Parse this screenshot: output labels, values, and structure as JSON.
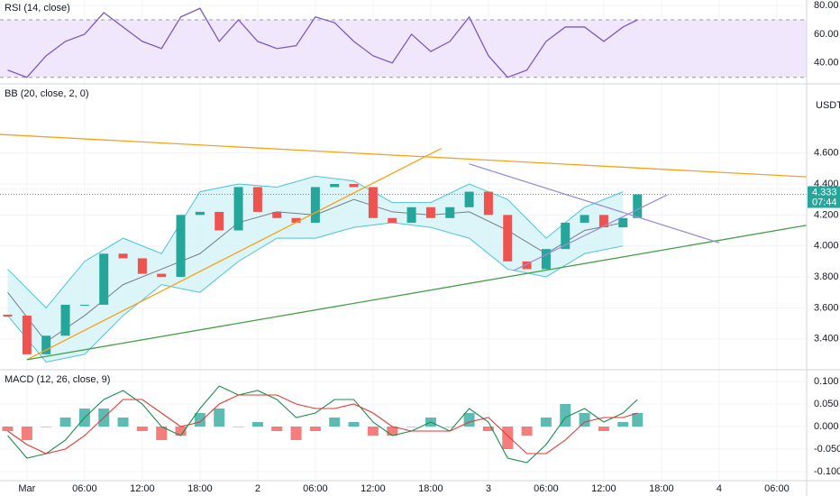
{
  "chart_data": [
    {
      "type": "line",
      "title": "RSI (14, close)",
      "x": [
        -2,
        0,
        2,
        4,
        6,
        8,
        10,
        12,
        14,
        16,
        18,
        20,
        22,
        24,
        26,
        28,
        30,
        32,
        34,
        36,
        38,
        40,
        42,
        44,
        46,
        48,
        50,
        52,
        54,
        56,
        58,
        60,
        62,
        63.5
      ],
      "values": [
        35,
        30,
        45,
        55,
        60,
        75,
        65,
        55,
        50,
        72,
        78,
        55,
        70,
        55,
        50,
        52,
        72,
        68,
        55,
        45,
        40,
        60,
        48,
        55,
        72,
        45,
        30,
        35,
        55,
        65,
        65,
        55,
        65,
        70
      ],
      "color": "#7e57c2",
      "band": [
        30,
        70
      ],
      "band_color": "#f1e7fd",
      "xlim": [
        -2.8,
        81.1
      ],
      "ylim": [
        26.7,
        83.8
      ],
      "yticks": [
        {
          "value": 40,
          "label": "40.00"
        },
        {
          "value": 60,
          "label": "60.00"
        },
        {
          "value": 80,
          "label": "80.00"
        }
      ]
    },
    {
      "type": "candlestick",
      "title": "BB (20, close, 2, 0)",
      "unit": "USDT",
      "x": [
        -2,
        0,
        2,
        4,
        6,
        8,
        10,
        12,
        14,
        16,
        18,
        20,
        22,
        24,
        26,
        28,
        30,
        32,
        34,
        36,
        38,
        40,
        42,
        44,
        46,
        48,
        50,
        52,
        54,
        56,
        58,
        60,
        62,
        63.5
      ],
      "close": [
        3.55,
        3.3,
        3.42,
        3.62,
        3.62,
        3.95,
        3.92,
        3.82,
        3.8,
        4.2,
        4.22,
        4.1,
        4.38,
        4.22,
        4.18,
        4.15,
        4.38,
        4.4,
        4.38,
        4.18,
        4.15,
        4.25,
        4.18,
        4.25,
        4.35,
        4.2,
        3.9,
        3.85,
        3.98,
        4.15,
        4.2,
        4.12,
        4.18,
        4.333
      ],
      "up_color": "#26a69a",
      "down_color": "#ef5350",
      "bands": {
        "x": [
          -2,
          2,
          6,
          10,
          14,
          18,
          22,
          26,
          30,
          34,
          38,
          42,
          46,
          50,
          54,
          58,
          62
        ],
        "upper": [
          3.85,
          3.6,
          3.9,
          4.05,
          3.95,
          4.35,
          4.4,
          4.38,
          4.45,
          4.42,
          4.28,
          4.28,
          4.4,
          4.3,
          4.05,
          4.25,
          4.35
        ],
        "middle": [
          3.7,
          3.38,
          3.55,
          3.75,
          3.85,
          3.95,
          4.15,
          4.22,
          4.2,
          4.3,
          4.22,
          4.2,
          4.22,
          4.1,
          3.95,
          4.1,
          4.15
        ],
        "lower": [
          3.55,
          3.25,
          3.3,
          3.55,
          3.75,
          3.7,
          3.9,
          4.05,
          4.05,
          4.12,
          4.15,
          4.12,
          4.05,
          3.85,
          3.8,
          3.95,
          4.0
        ],
        "color": "#4dc4d6",
        "middle_color": "#787b86",
        "fill": "#d3f3f8"
      },
      "trendlines": [
        {
          "color": "#f7a21b",
          "x": [
            -2.8,
            84.5
          ],
          "y": [
            4.72,
            4.435
          ]
        },
        {
          "color": "#f7a21b",
          "x": [
            0,
            43.1
          ],
          "y": [
            3.265,
            4.63
          ]
        },
        {
          "color": "#43a047",
          "x": [
            0,
            84.5
          ],
          "y": [
            3.265,
            4.17
          ]
        },
        {
          "color": "#9c8fd4",
          "x": [
            46,
            72
          ],
          "y": [
            4.53,
            4.02
          ]
        },
        {
          "color": "#9c8fd4",
          "x": [
            50.6,
            66.6
          ],
          "y": [
            3.84,
            4.33
          ]
        }
      ],
      "last": {
        "value": 4.333,
        "countdown": "07:44",
        "color": "#26a69a"
      },
      "xlim": [
        -2.8,
        81.1
      ],
      "ylim": [
        3.206,
        5.035
      ],
      "yticks": [
        {
          "value": 3.4,
          "label": "3.400"
        },
        {
          "value": 3.6,
          "label": "3.600"
        },
        {
          "value": 3.8,
          "label": "3.800"
        },
        {
          "value": 4.0,
          "label": "4.000"
        },
        {
          "value": 4.2,
          "label": "4.200"
        },
        {
          "value": 4.4,
          "label": "4.400"
        },
        {
          "value": 4.6,
          "label": "4.600"
        }
      ]
    },
    {
      "type": "macd",
      "title": "MACD (12, 26, close, 9)",
      "x": [
        -2,
        0,
        2,
        4,
        6,
        8,
        10,
        12,
        14,
        16,
        18,
        20,
        22,
        24,
        26,
        28,
        30,
        32,
        34,
        36,
        38,
        40,
        42,
        44,
        46,
        48,
        50,
        52,
        54,
        56,
        58,
        60,
        62,
        63.5
      ],
      "histogram": {
        "values": [
          -0.01,
          -0.03,
          0,
          0.02,
          0.04,
          0.04,
          0.02,
          -0.01,
          -0.03,
          -0.02,
          0.03,
          0.04,
          0,
          0.01,
          -0.01,
          -0.03,
          -0.01,
          0.02,
          0.01,
          -0.02,
          -0.02,
          0,
          0.02,
          0,
          0.03,
          -0.01,
          -0.05,
          -0.02,
          0.02,
          0.05,
          0.03,
          -0.01,
          0.01,
          0.03
        ],
        "up_color": "#26a69a",
        "down_color": "#ef5350"
      },
      "macd": {
        "values": [
          -0.02,
          -0.07,
          -0.06,
          -0.03,
          0.02,
          0.06,
          0.08,
          0.05,
          0.0,
          -0.02,
          0.04,
          0.09,
          0.07,
          0.08,
          0.06,
          0.02,
          0.03,
          0.06,
          0.06,
          0.01,
          -0.02,
          -0.01,
          0.01,
          -0.01,
          0.04,
          0.01,
          -0.07,
          -0.08,
          -0.04,
          0.02,
          0.04,
          0.01,
          0.03,
          0.06
        ],
        "color": "#1b8f4f"
      },
      "signal": {
        "values": [
          -0.01,
          -0.04,
          -0.06,
          -0.05,
          -0.02,
          0.02,
          0.06,
          0.06,
          0.03,
          0.0,
          0.01,
          0.05,
          0.07,
          0.07,
          0.07,
          0.05,
          0.04,
          0.04,
          0.05,
          0.03,
          0.0,
          -0.01,
          -0.01,
          -0.01,
          0.01,
          0.02,
          -0.02,
          -0.06,
          -0.06,
          -0.03,
          0.01,
          0.02,
          0.02,
          0.03
        ],
        "color": "#e53935"
      },
      "xlim": [
        -2.8,
        81.1
      ],
      "ylim": [
        -0.12,
        0.124
      ],
      "yticks": [
        {
          "value": -0.1,
          "label": "-0.100"
        },
        {
          "value": -0.05,
          "label": "-0.050"
        },
        {
          "value": 0,
          "label": "0.000"
        },
        {
          "value": 0.05,
          "label": "0.050"
        },
        {
          "value": 0.1,
          "label": "0.100"
        }
      ],
      "xticks": [
        {
          "value": 0,
          "label": "Mar"
        },
        {
          "value": 6,
          "label": "06:00"
        },
        {
          "value": 12,
          "label": "12:00"
        },
        {
          "value": 18,
          "label": "18:00"
        },
        {
          "value": 24,
          "label": "2"
        },
        {
          "value": 30,
          "label": "06:00"
        },
        {
          "value": 36,
          "label": "12:00"
        },
        {
          "value": 42,
          "label": "18:00"
        },
        {
          "value": 48,
          "label": "3"
        },
        {
          "value": 54,
          "label": "06:00"
        },
        {
          "value": 60,
          "label": "12:00"
        },
        {
          "value": 66,
          "label": "18:00"
        },
        {
          "value": 72,
          "label": "4"
        },
        {
          "value": 78,
          "label": "06:00"
        }
      ]
    }
  ]
}
